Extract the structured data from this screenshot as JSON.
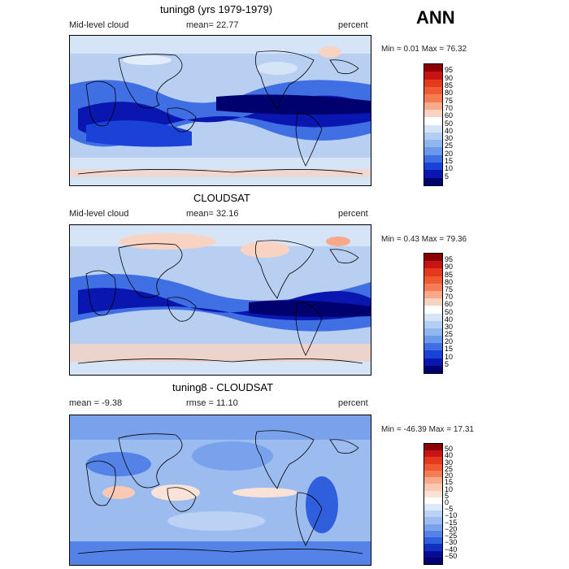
{
  "season": "ANN",
  "panels": [
    {
      "title": "tuning8 (yrs 1979-1979)",
      "variable": "Mid-level cloud",
      "stat_text": "mean=   22.77",
      "units": "percent",
      "minmax": "Min =    0.01 Max =   76.32",
      "levels": [
        "95",
        "90",
        "85",
        "80",
        "75",
        "70",
        "60",
        "50",
        "40",
        "30",
        "25",
        "20",
        "15",
        "10",
        "5"
      ],
      "colors": [
        "#8b0000",
        "#c81414",
        "#e5391e",
        "#f05a32",
        "#f57d55",
        "#f7a98a",
        "#f9d3c2",
        "#ffffff",
        "#d6e4f8",
        "#b3cdf3",
        "#91b5ee",
        "#6a98ea",
        "#3f6fe3",
        "#1b42d8",
        "#0a16b0",
        "#00006e"
      ]
    },
    {
      "title": "CLOUDSAT",
      "variable": "Mid-level cloud",
      "stat_text": "mean=   32.16",
      "units": "percent",
      "minmax": "Min =    0.43 Max =   79.36",
      "levels": [
        "95",
        "90",
        "85",
        "80",
        "75",
        "70",
        "60",
        "50",
        "40",
        "30",
        "25",
        "20",
        "15",
        "10",
        "5"
      ],
      "colors": [
        "#8b0000",
        "#c81414",
        "#e5391e",
        "#f05a32",
        "#f57d55",
        "#f7a98a",
        "#f9d3c2",
        "#ffffff",
        "#d6e4f8",
        "#b3cdf3",
        "#91b5ee",
        "#6a98ea",
        "#3f6fe3",
        "#1b42d8",
        "#0a16b0",
        "#00006e"
      ]
    },
    {
      "title": "tuning8 - CLOUDSAT",
      "stat_text": "mean =   -9.38",
      "stat_text2": "rmse =   11.10",
      "units": "percent",
      "minmax": "Min = -46.39 Max =   17.31",
      "levels": [
        "50",
        "40",
        "30",
        "25",
        "20",
        "15",
        "10",
        "5",
        "0",
        "−5",
        "−10",
        "−15",
        "−20",
        "−25",
        "−30",
        "−40",
        "−50"
      ],
      "colors": [
        "#8b0000",
        "#c81414",
        "#e5391e",
        "#f05a32",
        "#f57d55",
        "#f7a98a",
        "#f9c9b4",
        "#fbe2d6",
        "#ffffff",
        "#dde8f8",
        "#bcd2f4",
        "#9cbcf0",
        "#7aa2ec",
        "#5482e6",
        "#2f5fdd",
        "#1030c0",
        "#0a0a96",
        "#00006e"
      ]
    }
  ],
  "colors": {
    "map_base_blue": "#b8cff2",
    "deep_blue": "#0a16b0",
    "mid_blue": "#3f6fe3",
    "light_blue": "#d6e4f8",
    "coast": "#000000"
  }
}
